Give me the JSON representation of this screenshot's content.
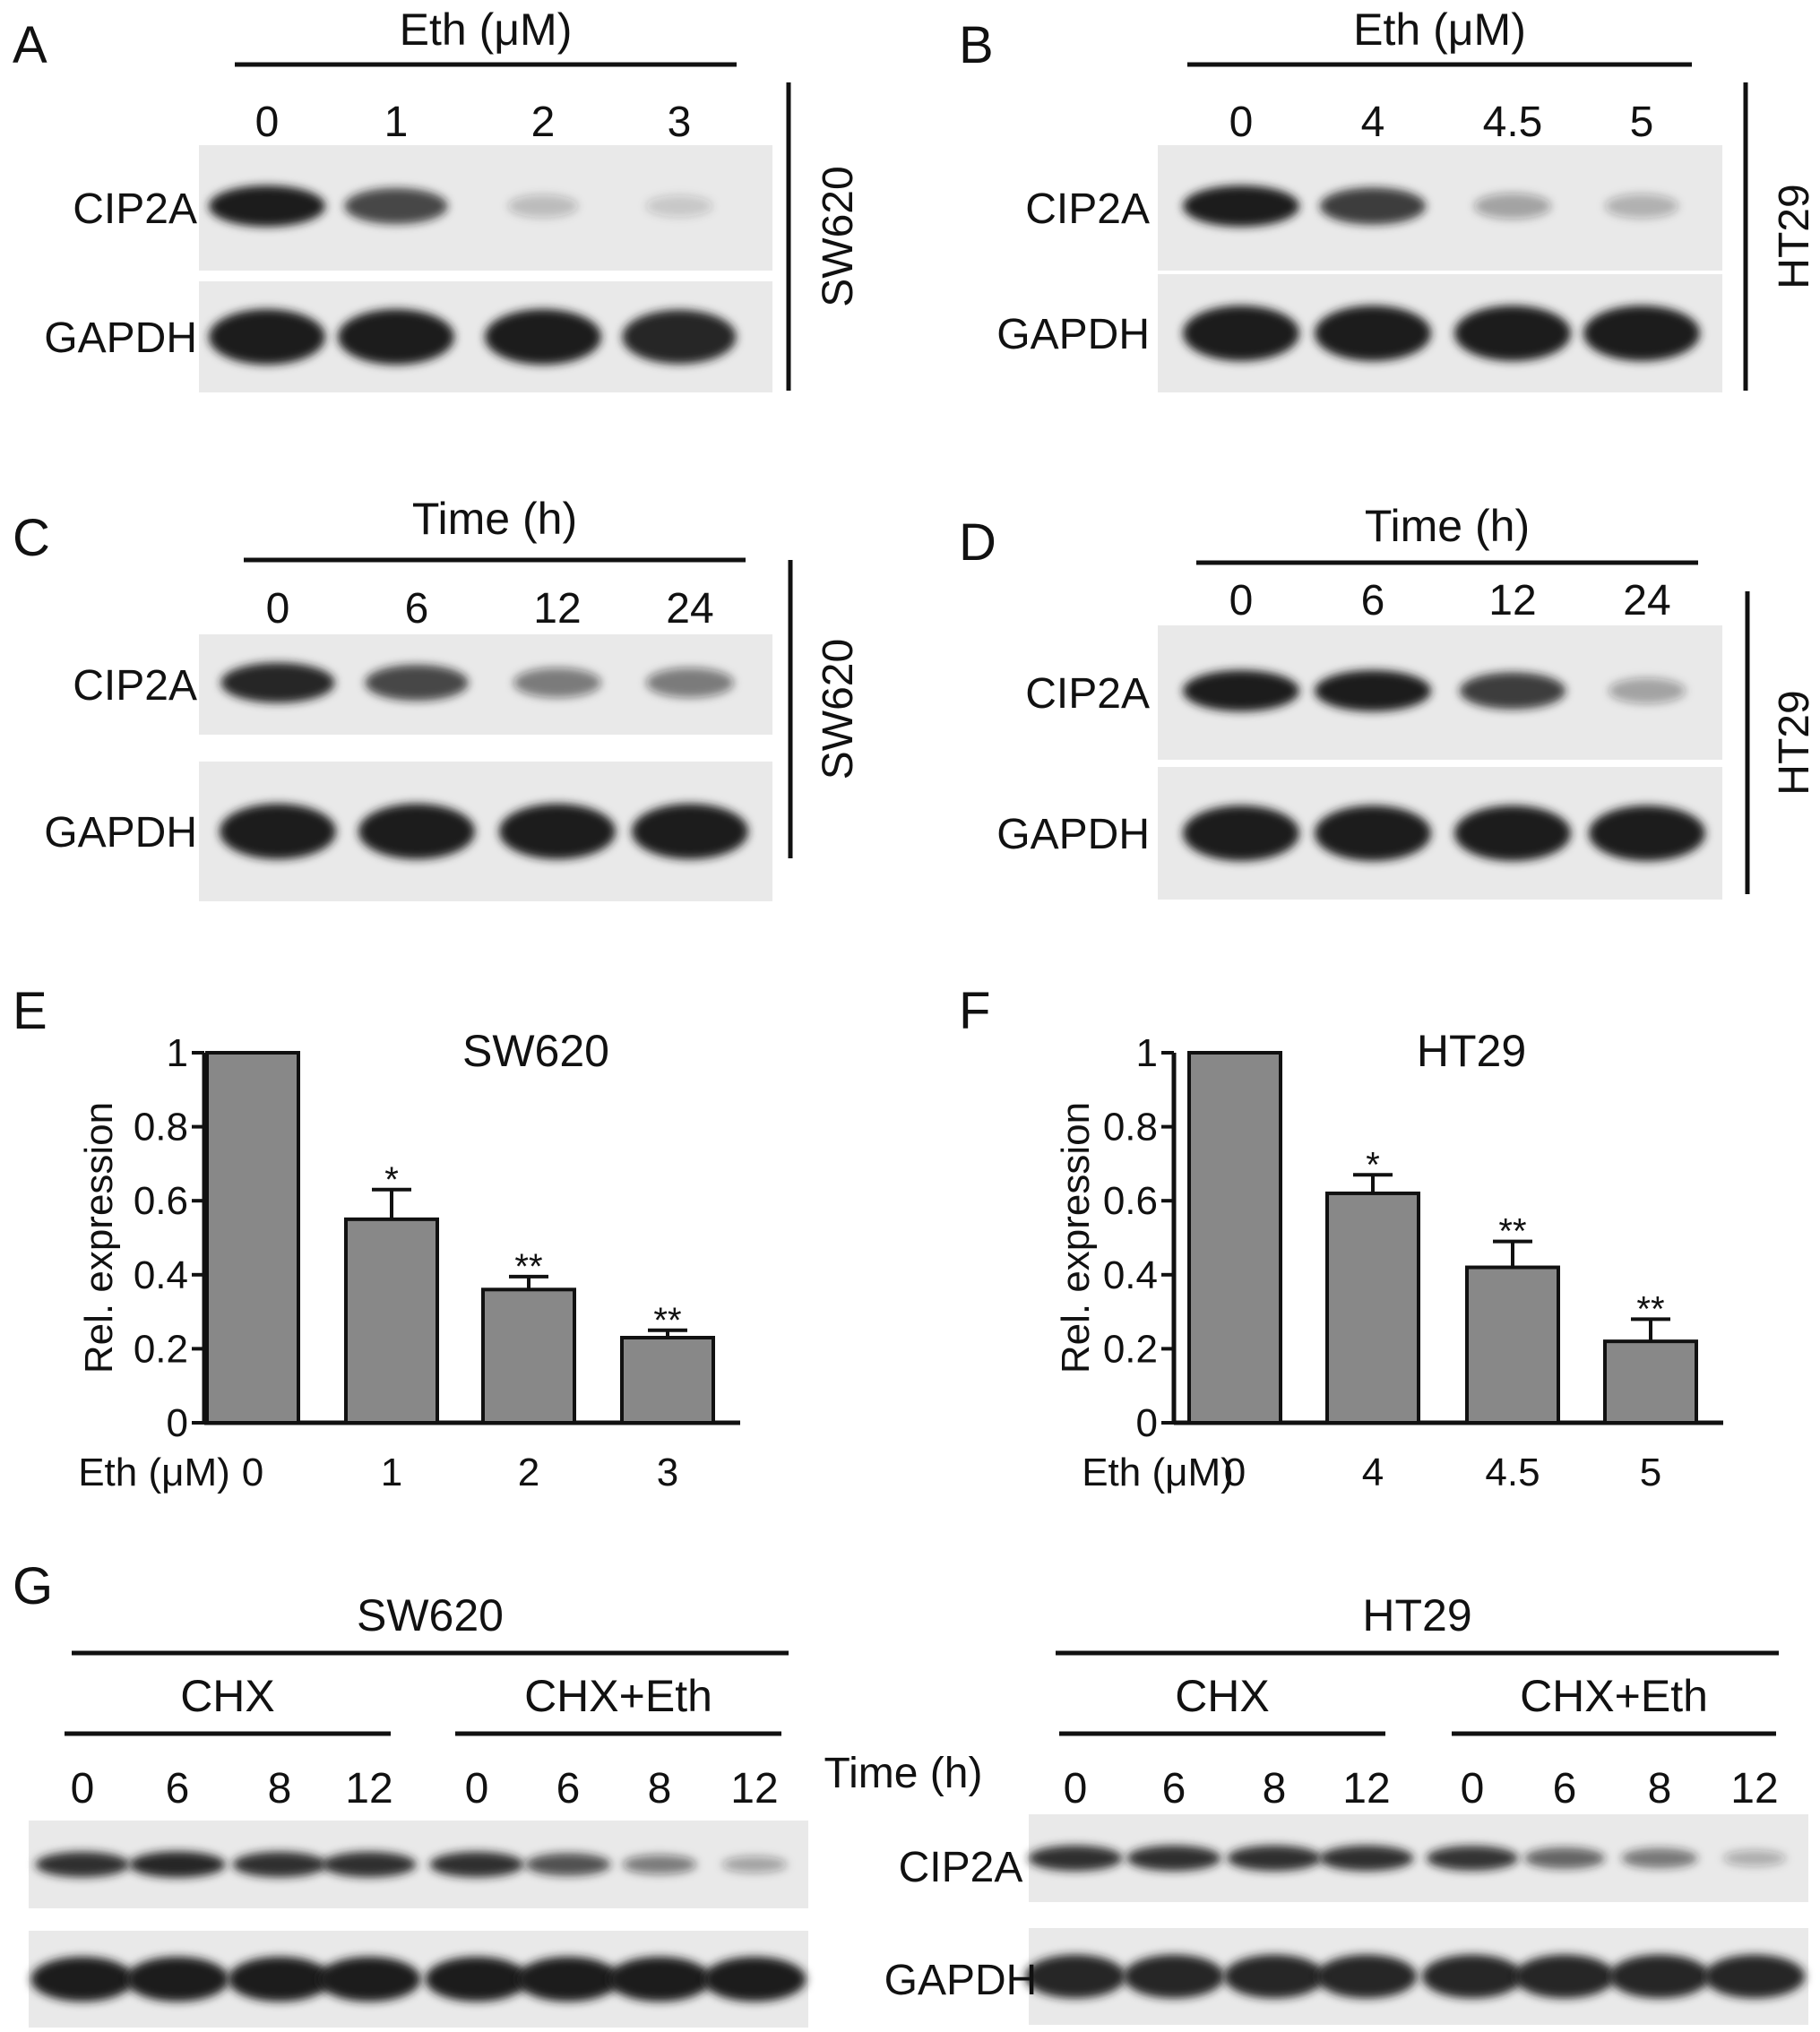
{
  "colors": {
    "bar_fill": "#888888",
    "line": "#111111",
    "blot_bg": "#e9e9e9",
    "band": "#1b1b1b"
  },
  "panels": {
    "A": {
      "label": "A",
      "header": "Eth (μM)",
      "lanes": [
        "0",
        "1",
        "2",
        "3"
      ],
      "cell_line": "SW620",
      "rows": [
        {
          "label": "CIP2A",
          "intensity": [
            1.0,
            0.75,
            0.12,
            0.06
          ]
        },
        {
          "label": "GAPDH",
          "intensity": [
            1.0,
            1.0,
            1.0,
            0.95
          ]
        }
      ]
    },
    "B": {
      "label": "B",
      "header": "Eth (μM)",
      "lanes": [
        "0",
        "4",
        "4.5",
        "5"
      ],
      "cell_line": "HT29",
      "rows": [
        {
          "label": "CIP2A",
          "intensity": [
            1.0,
            0.8,
            0.25,
            0.18
          ]
        },
        {
          "label": "GAPDH",
          "intensity": [
            1.0,
            1.0,
            1.0,
            1.0
          ]
        }
      ]
    },
    "C": {
      "label": "C",
      "header": "Time (h)",
      "lanes": [
        "0",
        "6",
        "12",
        "24"
      ],
      "cell_line": "SW620",
      "rows": [
        {
          "label": "CIP2A",
          "intensity": [
            0.95,
            0.75,
            0.45,
            0.45
          ]
        },
        {
          "label": "GAPDH",
          "intensity": [
            1.0,
            1.0,
            1.0,
            1.0
          ]
        }
      ]
    },
    "D": {
      "label": "D",
      "header": "Time (h)",
      "lanes": [
        "0",
        "6",
        "12",
        "24"
      ],
      "cell_line": "HT29",
      "rows": [
        {
          "label": "CIP2A",
          "intensity": [
            1.0,
            1.0,
            0.8,
            0.25
          ]
        },
        {
          "label": "GAPDH",
          "intensity": [
            1.0,
            1.0,
            1.0,
            1.0
          ]
        }
      ]
    },
    "G": {
      "label": "G",
      "time_label": "Time (h)",
      "row_labels": [
        "CIP2A",
        "GAPDH"
      ],
      "groups": [
        {
          "cell_line": "SW620",
          "conditions": [
            {
              "name": "CHX",
              "lanes": [
                "0",
                "6",
                "8",
                "12"
              ],
              "cip2a": [
                0.9,
                0.95,
                0.9,
                0.9
              ],
              "gapdh": [
                1.0,
                1.0,
                1.0,
                1.0
              ]
            },
            {
              "name": "CHX+Eth",
              "lanes": [
                "0",
                "6",
                "8",
                "12"
              ],
              "cip2a": [
                0.9,
                0.7,
                0.45,
                0.25
              ],
              "gapdh": [
                1.0,
                1.0,
                1.0,
                1.0
              ]
            }
          ]
        },
        {
          "cell_line": "HT29",
          "conditions": [
            {
              "name": "CHX",
              "lanes": [
                "0",
                "6",
                "8",
                "12"
              ],
              "cip2a": [
                0.9,
                0.9,
                0.9,
                0.9
              ],
              "gapdh": [
                0.95,
                0.95,
                0.95,
                0.95
              ]
            },
            {
              "name": "CHX+Eth",
              "lanes": [
                "0",
                "6",
                "8",
                "12"
              ],
              "cip2a": [
                0.85,
                0.6,
                0.5,
                0.2
              ],
              "gapdh": [
                0.95,
                0.95,
                0.95,
                0.95
              ]
            }
          ]
        }
      ]
    }
  },
  "chart_data": [
    {
      "type": "bar",
      "panel": "E",
      "title": "SW620",
      "ylabel": "Rel. expression",
      "xlabel": "Eth (μM)",
      "categories": [
        "0",
        "1",
        "2",
        "3"
      ],
      "values": [
        1.0,
        0.55,
        0.36,
        0.23
      ],
      "errors": [
        0,
        0.08,
        0.035,
        0.02
      ],
      "annotations": [
        "",
        "*",
        "**",
        "**"
      ],
      "ylim": [
        0,
        1
      ],
      "yticks": [
        "0",
        "0.2",
        "0.4",
        "0.6",
        "0.8",
        "1"
      ],
      "grid": false
    },
    {
      "type": "bar",
      "panel": "F",
      "title": "HT29",
      "ylabel": "Rel. expression",
      "xlabel": "Eth (μM)",
      "categories": [
        "0",
        "4",
        "4.5",
        "5"
      ],
      "values": [
        1.0,
        0.62,
        0.42,
        0.22
      ],
      "errors": [
        0,
        0.05,
        0.07,
        0.06
      ],
      "annotations": [
        "",
        "*",
        "**",
        "**"
      ],
      "ylim": [
        0,
        1
      ],
      "yticks": [
        "0",
        "0.2",
        "0.4",
        "0.6",
        "0.8",
        "1"
      ],
      "grid": false
    }
  ]
}
